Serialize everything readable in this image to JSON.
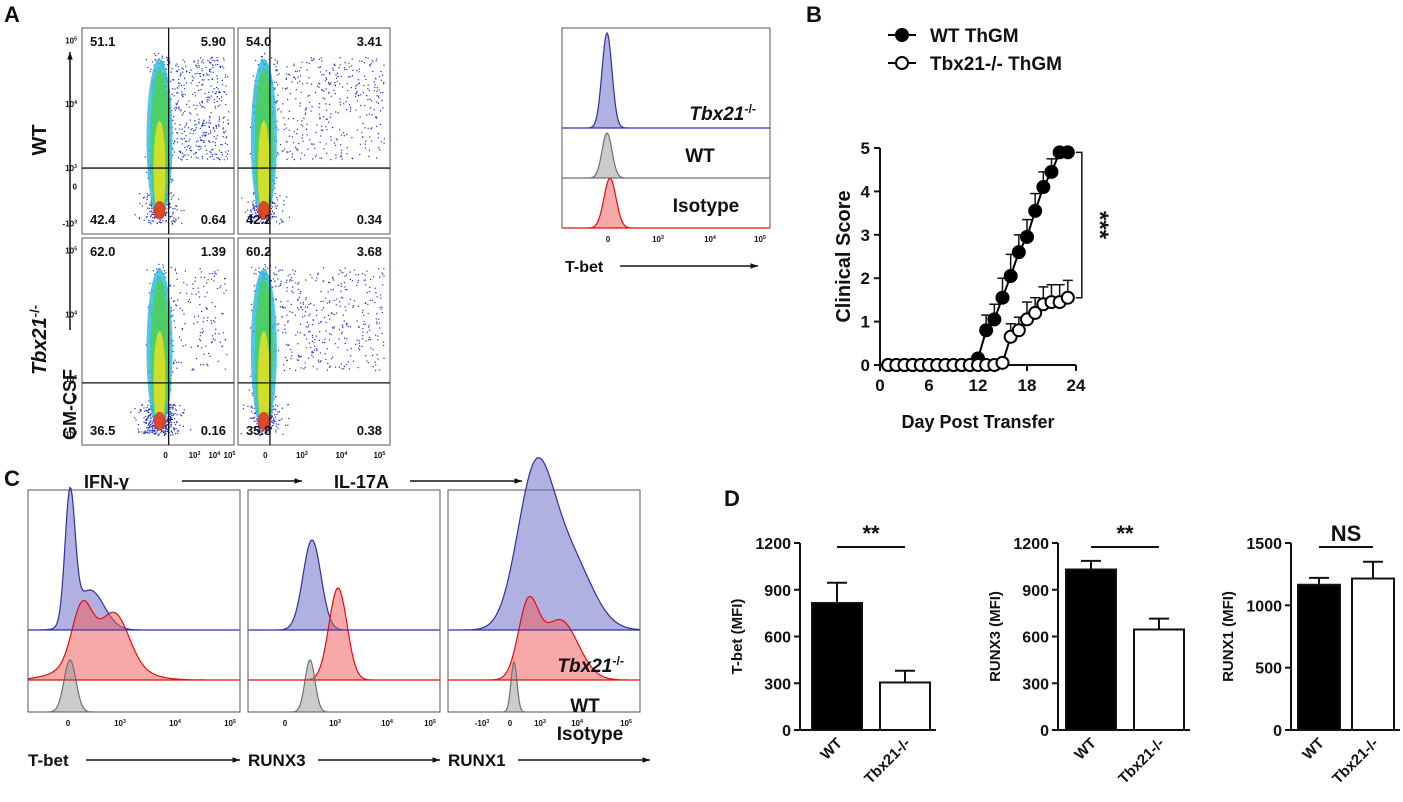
{
  "panel_labels": [
    "A",
    "B",
    "C",
    "D"
  ],
  "flow": {
    "y_axis_label": "GM-CSF",
    "row_labels": [
      {
        "text": "WT"
      },
      {
        "text": "Tbx21",
        "sup": "-/-"
      }
    ],
    "x_axis_labels": [
      "IFN-γ",
      "IL-17A"
    ],
    "x_ticks": [
      {
        "text": "0"
      },
      {
        "text": "10",
        "sup": "3"
      },
      {
        "text": "10",
        "sup": "4"
      },
      {
        "text": "10",
        "sup": "5"
      }
    ],
    "y_ticks": [
      {
        "text": "10",
        "sup": "5"
      },
      {
        "text": "10",
        "sup": "4"
      },
      {
        "text": "10",
        "sup": "3"
      },
      {
        "text": "0"
      },
      {
        "text": "-10",
        "sup": "3"
      }
    ],
    "plots": [
      [
        [
          "51.1",
          "5.90",
          "42.4",
          "0.64"
        ],
        [
          "54.0",
          "3.41",
          "42.2",
          "0.34"
        ]
      ],
      [
        [
          "62.0",
          "1.39",
          "36.5",
          "0.16"
        ],
        [
          "60.2",
          "3.68",
          "35.8",
          "0.38"
        ]
      ]
    ]
  },
  "tbet_histogram": {
    "x_axis_label": "T-bet",
    "legend": [
      {
        "text": "Tbx21",
        "sup": "-/-"
      },
      {
        "text": "WT"
      },
      {
        "text": "Isotype"
      }
    ],
    "x_ticks": [
      {
        "text": "0"
      },
      {
        "text": "10",
        "sup": "3"
      },
      {
        "text": "10",
        "sup": "4"
      },
      {
        "text": "10",
        "sup": "5"
      }
    ]
  },
  "histograms_c": {
    "x_axis_labels": [
      "T-bet",
      "RUNX3",
      "RUNX1"
    ],
    "legend": [
      {
        "text": "Tbx21",
        "sup": "-/-"
      },
      {
        "text": "WT"
      },
      {
        "text": "Isotype"
      }
    ],
    "x_ticks": [
      {
        "text": "0"
      },
      {
        "text": "10",
        "sup": "3"
      },
      {
        "text": "10",
        "sup": "4"
      },
      {
        "text": "10",
        "sup": "5"
      }
    ],
    "x_ticks_runx1": [
      {
        "text": "-10",
        "sup": "3"
      },
      {
        "text": "0"
      },
      {
        "text": "10",
        "sup": "3"
      },
      {
        "text": "10",
        "sup": "4"
      },
      {
        "text": "10",
        "sup": "5"
      }
    ]
  },
  "chart_data": [
    {
      "type": "line",
      "y_axis_label": "Clinical Score",
      "x_axis_label": "Day Post Transfer",
      "x": [
        1,
        2,
        3,
        4,
        5,
        6,
        7,
        8,
        9,
        10,
        11,
        12,
        13,
        14,
        15,
        16,
        17,
        18,
        19,
        20,
        21,
        22,
        23
      ],
      "series": [
        {
          "name": "WT ThGM",
          "color": "#000000",
          "marker_fill": "#000000",
          "values": [
            0,
            0,
            0,
            0,
            0,
            0,
            0,
            0,
            0,
            0,
            0,
            0.15,
            0.8,
            1.05,
            1.55,
            2.05,
            2.6,
            2.95,
            3.55,
            4.1,
            4.45,
            4.9,
            4.9
          ],
          "errors": [
            0,
            0,
            0,
            0,
            0,
            0,
            0,
            0,
            0,
            0,
            0,
            0.1,
            0.35,
            0.35,
            0.45,
            0.5,
            0.4,
            0.4,
            0.4,
            0.35,
            0.3,
            0.1,
            0.1
          ]
        },
        {
          "name": "Tbx21-/- ThGM",
          "color": "#000000",
          "marker_fill": "#ffffff",
          "values": [
            0,
            0,
            0,
            0,
            0,
            0,
            0,
            0,
            0,
            0,
            0,
            0,
            0,
            0,
            0.05,
            0.65,
            0.8,
            1.05,
            1.2,
            1.4,
            1.45,
            1.45,
            1.55
          ],
          "errors": [
            0,
            0,
            0,
            0,
            0,
            0,
            0,
            0,
            0,
            0,
            0,
            0,
            0,
            0,
            0.05,
            0.3,
            0.3,
            0.4,
            0.35,
            0.4,
            0.4,
            0.4,
            0.4
          ]
        }
      ],
      "xlim": [
        0,
        24
      ],
      "xticks": [
        0,
        6,
        12,
        18,
        24
      ],
      "ylim": [
        0,
        5
      ],
      "yticks": [
        0,
        1,
        2,
        3,
        4,
        5
      ],
      "annotation": "***"
    },
    {
      "type": "bar",
      "y_axis_label": "T-bet (MFI)",
      "categories": [
        "WT",
        "Tbx21-/-"
      ],
      "values": [
        815,
        305
      ],
      "errors": [
        130,
        75
      ],
      "colors": [
        "#000000",
        "#ffffff"
      ],
      "ylim": [
        0,
        1200
      ],
      "yticks": [
        0,
        300,
        600,
        900,
        1200
      ],
      "annotation": "**"
    },
    {
      "type": "bar",
      "y_axis_label": "RUNX3 (MFI)",
      "categories": [
        "WT",
        "Tbx21-/-"
      ],
      "values": [
        1030,
        645
      ],
      "errors": [
        55,
        70
      ],
      "colors": [
        "#000000",
        "#ffffff"
      ],
      "ylim": [
        0,
        1200
      ],
      "yticks": [
        0,
        300,
        600,
        900,
        1200
      ],
      "annotation": "**"
    },
    {
      "type": "bar",
      "y_axis_label": "RUNX1 (MFI)",
      "categories": [
        "WT",
        "Tbx21-/-"
      ],
      "values": [
        1165,
        1215
      ],
      "errors": [
        55,
        135
      ],
      "colors": [
        "#000000",
        "#ffffff"
      ],
      "ylim": [
        0,
        1500
      ],
      "yticks": [
        0,
        500,
        1000,
        1500
      ],
      "annotation": "NS"
    }
  ]
}
